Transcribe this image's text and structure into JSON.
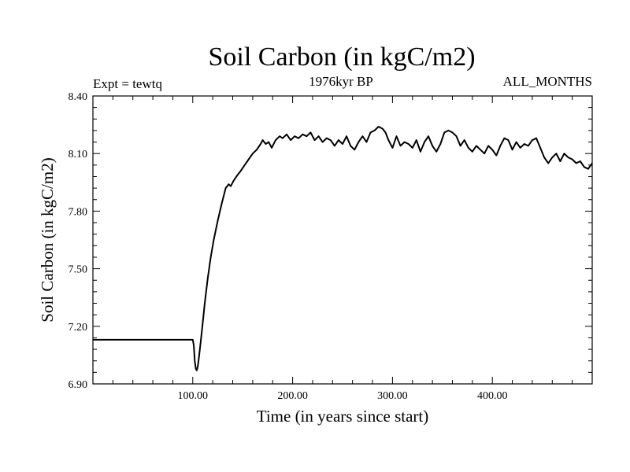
{
  "chart_data": {
    "type": "line",
    "title": "Soil Carbon (in kgC/m2)",
    "subtitle": "1976kyr BP",
    "experiment_label": "Expt = tewtq",
    "period_label": "ALL_MONTHS",
    "xlabel": "Time (in years since start)",
    "ylabel": "Soil Carbon (in kgC/m2)",
    "xlim": [
      0,
      500
    ],
    "ylim": [
      6.9,
      8.4
    ],
    "x_ticks": [
      {
        "value": 100,
        "label": "100.00"
      },
      {
        "value": 200,
        "label": "200.00"
      },
      {
        "value": 300,
        "label": "300.00"
      },
      {
        "value": 400,
        "label": "400.00"
      }
    ],
    "y_ticks": [
      {
        "value": 6.9,
        "label": "6.90"
      },
      {
        "value": 7.2,
        "label": "7.20"
      },
      {
        "value": 7.5,
        "label": "7.50"
      },
      {
        "value": 7.8,
        "label": "7.80"
      },
      {
        "value": 8.1,
        "label": "8.10"
      },
      {
        "value": 8.4,
        "label": "8.40"
      }
    ],
    "grid": false,
    "line_color": "#000000",
    "series": [
      {
        "name": "Soil Carbon",
        "x": [
          0,
          100,
          101,
          102,
          103,
          104,
          105,
          106,
          108,
          110,
          112,
          115,
          118,
          121,
          125,
          129,
          133,
          136,
          138,
          141,
          145,
          148,
          152,
          156,
          160,
          164,
          168,
          170,
          173,
          176,
          179,
          183,
          187,
          190,
          194,
          198,
          202,
          206,
          210,
          214,
          218,
          222,
          226,
          230,
          234,
          238,
          242,
          246,
          250,
          254,
          258,
          262,
          266,
          270,
          274,
          278,
          282,
          286,
          290,
          293,
          296,
          300,
          304,
          308,
          312,
          316,
          320,
          324,
          328,
          332,
          336,
          340,
          344,
          348,
          352,
          356,
          360,
          364,
          368,
          372,
          376,
          380,
          384,
          388,
          392,
          396,
          400,
          404,
          408,
          412,
          416,
          420,
          424,
          428,
          432,
          436,
          440,
          444,
          448,
          452,
          456,
          460,
          464,
          468,
          472,
          476,
          480,
          484,
          488,
          492,
          496,
          500
        ],
        "values": [
          7.13,
          7.13,
          7.1,
          7.02,
          6.98,
          6.97,
          6.99,
          7.03,
          7.12,
          7.22,
          7.32,
          7.45,
          7.56,
          7.65,
          7.75,
          7.84,
          7.92,
          7.94,
          7.93,
          7.96,
          7.99,
          8.01,
          8.04,
          8.07,
          8.1,
          8.12,
          8.15,
          8.17,
          8.15,
          8.16,
          8.13,
          8.17,
          8.19,
          8.18,
          8.2,
          8.17,
          8.19,
          8.18,
          8.2,
          8.19,
          8.21,
          8.17,
          8.19,
          8.16,
          8.18,
          8.17,
          8.14,
          8.17,
          8.15,
          8.19,
          8.14,
          8.12,
          8.16,
          8.19,
          8.16,
          8.21,
          8.22,
          8.24,
          8.23,
          8.21,
          8.17,
          8.13,
          8.19,
          8.14,
          8.16,
          8.15,
          8.13,
          8.17,
          8.11,
          8.16,
          8.19,
          8.14,
          8.11,
          8.15,
          8.21,
          8.22,
          8.21,
          8.19,
          8.14,
          8.17,
          8.13,
          8.11,
          8.14,
          8.12,
          8.1,
          8.14,
          8.12,
          8.09,
          8.14,
          8.18,
          8.17,
          8.12,
          8.16,
          8.13,
          8.15,
          8.14,
          8.17,
          8.18,
          8.13,
          8.08,
          8.05,
          8.08,
          8.1,
          8.06,
          8.1,
          8.08,
          8.07,
          8.05,
          8.06,
          8.03,
          8.02,
          8.05
        ]
      }
    ]
  }
}
